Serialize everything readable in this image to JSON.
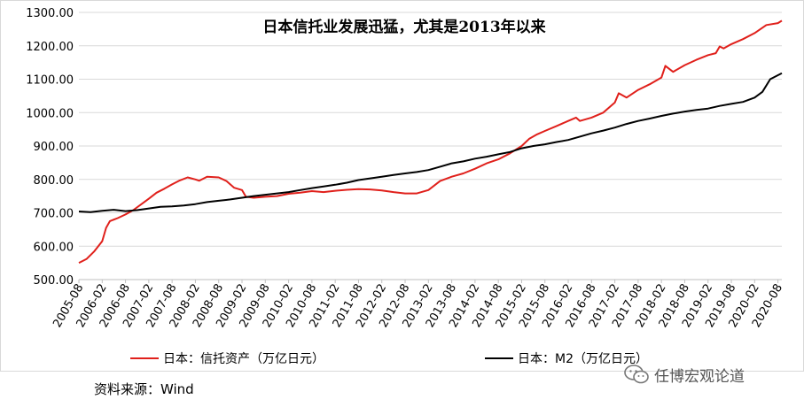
{
  "chart_data": {
    "type": "line",
    "title": "日本信托业发展迅猛，尤其是2013年以来",
    "ylim": [
      500,
      1300
    ],
    "yticks": [
      "500.00",
      "600.00",
      "700.00",
      "800.00",
      "900.00",
      "1000.00",
      "1100.00",
      "1200.00",
      "1300.00"
    ],
    "xticks": [
      "2005-08",
      "2006-02",
      "2006-08",
      "2007-02",
      "2007-08",
      "2008-02",
      "2008-08",
      "2009-02",
      "2009-08",
      "2010-02",
      "2010-08",
      "2011-02",
      "2011-08",
      "2012-02",
      "2012-08",
      "2013-02",
      "2013-08",
      "2014-02",
      "2014-08",
      "2015-02",
      "2015-08",
      "2016-02",
      "2016-08",
      "2017-02",
      "2017-08",
      "2018-02",
      "2018-08",
      "2019-02",
      "2019-08",
      "2020-02",
      "2020-08"
    ],
    "grid": true,
    "legend_position": "bottom",
    "series": [
      {
        "name": "日本：信托资产（万亿日元）",
        "color": "#e0201b",
        "points": [
          [
            "2005-08",
            550
          ],
          [
            "2005-10",
            562
          ],
          [
            "2005-12",
            585
          ],
          [
            "2006-01",
            600
          ],
          [
            "2006-02",
            615
          ],
          [
            "2006-03",
            655
          ],
          [
            "2006-04",
            675
          ],
          [
            "2006-06",
            684
          ],
          [
            "2006-08",
            695
          ],
          [
            "2006-10",
            708
          ],
          [
            "2006-12",
            725
          ],
          [
            "2007-02",
            742
          ],
          [
            "2007-04",
            760
          ],
          [
            "2007-06",
            772
          ],
          [
            "2007-08",
            785
          ],
          [
            "2007-10",
            797
          ],
          [
            "2007-12",
            806
          ],
          [
            "2008-02",
            800
          ],
          [
            "2008-03",
            796
          ],
          [
            "2008-05",
            808
          ],
          [
            "2008-08",
            806
          ],
          [
            "2008-10",
            795
          ],
          [
            "2008-12",
            775
          ],
          [
            "2009-02",
            768
          ],
          [
            "2009-03",
            748
          ],
          [
            "2009-05",
            745
          ],
          [
            "2009-08",
            748
          ],
          [
            "2009-11",
            750
          ],
          [
            "2010-02",
            757
          ],
          [
            "2010-05",
            760
          ],
          [
            "2010-08",
            765
          ],
          [
            "2010-11",
            762
          ],
          [
            "2011-02",
            766
          ],
          [
            "2011-05",
            769
          ],
          [
            "2011-08",
            771
          ],
          [
            "2011-11",
            770
          ],
          [
            "2012-02",
            767
          ],
          [
            "2012-05",
            762
          ],
          [
            "2012-08",
            758
          ],
          [
            "2012-11",
            758
          ],
          [
            "2013-02",
            768
          ],
          [
            "2013-05",
            795
          ],
          [
            "2013-08",
            808
          ],
          [
            "2013-11",
            818
          ],
          [
            "2014-02",
            832
          ],
          [
            "2014-05",
            848
          ],
          [
            "2014-08",
            860
          ],
          [
            "2014-11",
            878
          ],
          [
            "2015-02",
            900
          ],
          [
            "2015-04",
            922
          ],
          [
            "2015-06",
            935
          ],
          [
            "2015-08",
            945
          ],
          [
            "2015-11",
            960
          ],
          [
            "2016-02",
            975
          ],
          [
            "2016-04",
            985
          ],
          [
            "2016-05",
            975
          ],
          [
            "2016-08",
            985
          ],
          [
            "2016-11",
            1000
          ],
          [
            "2017-02",
            1030
          ],
          [
            "2017-03",
            1058
          ],
          [
            "2017-05",
            1045
          ],
          [
            "2017-08",
            1068
          ],
          [
            "2017-11",
            1085
          ],
          [
            "2018-02",
            1105
          ],
          [
            "2018-03",
            1140
          ],
          [
            "2018-05",
            1122
          ],
          [
            "2018-08",
            1142
          ],
          [
            "2018-11",
            1158
          ],
          [
            "2019-02",
            1172
          ],
          [
            "2019-04",
            1178
          ],
          [
            "2019-05",
            1198
          ],
          [
            "2019-06",
            1192
          ],
          [
            "2019-08",
            1205
          ],
          [
            "2019-11",
            1220
          ],
          [
            "2020-02",
            1238
          ],
          [
            "2020-05",
            1262
          ],
          [
            "2020-08",
            1268
          ],
          [
            "2020-09",
            1275
          ]
        ]
      },
      {
        "name": "日本：M2（万亿日元）",
        "color": "#000000",
        "points": [
          [
            "2005-08",
            704
          ],
          [
            "2005-11",
            702
          ],
          [
            "2006-02",
            706
          ],
          [
            "2006-05",
            709
          ],
          [
            "2006-08",
            705
          ],
          [
            "2006-11",
            708
          ],
          [
            "2007-02",
            713
          ],
          [
            "2007-05",
            718
          ],
          [
            "2007-08",
            719
          ],
          [
            "2007-11",
            722
          ],
          [
            "2008-02",
            726
          ],
          [
            "2008-05",
            732
          ],
          [
            "2008-08",
            736
          ],
          [
            "2008-11",
            740
          ],
          [
            "2009-02",
            745
          ],
          [
            "2009-05",
            750
          ],
          [
            "2009-08",
            754
          ],
          [
            "2009-11",
            758
          ],
          [
            "2010-02",
            762
          ],
          [
            "2010-05",
            768
          ],
          [
            "2010-08",
            774
          ],
          [
            "2010-11",
            779
          ],
          [
            "2011-02",
            784
          ],
          [
            "2011-05",
            790
          ],
          [
            "2011-08",
            798
          ],
          [
            "2011-11",
            803
          ],
          [
            "2012-02",
            808
          ],
          [
            "2012-05",
            813
          ],
          [
            "2012-08",
            818
          ],
          [
            "2012-11",
            822
          ],
          [
            "2013-02",
            828
          ],
          [
            "2013-05",
            838
          ],
          [
            "2013-08",
            848
          ],
          [
            "2013-11",
            854
          ],
          [
            "2014-02",
            862
          ],
          [
            "2014-05",
            868
          ],
          [
            "2014-08",
            875
          ],
          [
            "2014-11",
            882
          ],
          [
            "2015-02",
            893
          ],
          [
            "2015-05",
            900
          ],
          [
            "2015-08",
            905
          ],
          [
            "2015-11",
            912
          ],
          [
            "2016-02",
            918
          ],
          [
            "2016-05",
            928
          ],
          [
            "2016-08",
            938
          ],
          [
            "2016-11",
            946
          ],
          [
            "2017-02",
            955
          ],
          [
            "2017-05",
            966
          ],
          [
            "2017-08",
            975
          ],
          [
            "2017-11",
            982
          ],
          [
            "2018-02",
            990
          ],
          [
            "2018-05",
            997
          ],
          [
            "2018-08",
            1003
          ],
          [
            "2018-11",
            1008
          ],
          [
            "2019-02",
            1012
          ],
          [
            "2019-05",
            1020
          ],
          [
            "2019-08",
            1026
          ],
          [
            "2019-11",
            1032
          ],
          [
            "2020-02",
            1045
          ],
          [
            "2020-04",
            1062
          ],
          [
            "2020-06",
            1100
          ],
          [
            "2020-08",
            1112
          ],
          [
            "2020-09",
            1118
          ]
        ]
      }
    ]
  },
  "source_label": "资料来源：Wind",
  "watermark": {
    "icon": "wechat-icon",
    "text": "任博宏观论道"
  }
}
